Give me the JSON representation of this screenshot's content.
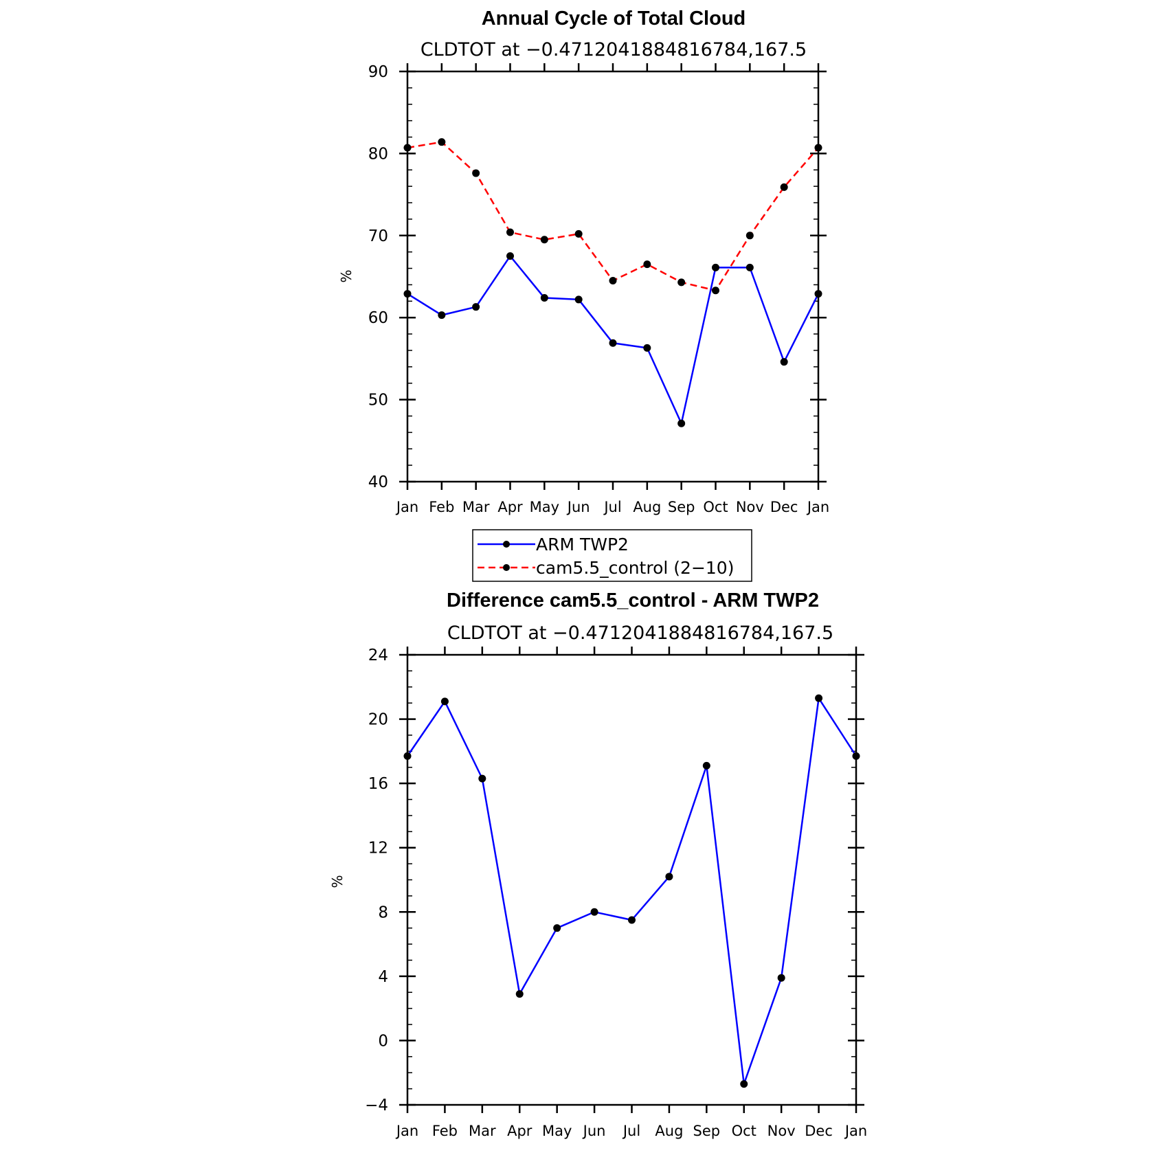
{
  "chart_data": [
    {
      "type": "line",
      "title": "Annual Cycle of Total Cloud",
      "subtitle": "CLDTOT at −0.4712041884816784,167.5",
      "ylabel": "%",
      "xlabel": "",
      "categories": [
        "Jan",
        "Feb",
        "Mar",
        "Apr",
        "May",
        "Jun",
        "Jul",
        "Aug",
        "Sep",
        "Oct",
        "Nov",
        "Dec",
        "Jan"
      ],
      "ylim": [
        40,
        90
      ],
      "yticks": [
        40,
        50,
        60,
        70,
        80,
        90
      ],
      "ytick_labels": [
        "40",
        "50",
        "60",
        "70",
        "80",
        "90"
      ],
      "grid": false,
      "legend_position": "bottom",
      "series": [
        {
          "name": "ARM TWP2",
          "color": "#0000ff",
          "dash": "solid",
          "values": [
            62.9,
            60.3,
            61.3,
            67.5,
            62.4,
            62.2,
            56.9,
            56.3,
            47.1,
            66.1,
            66.1,
            54.6,
            62.9
          ]
        },
        {
          "name": "cam5.5_control (2−10)",
          "color": "#ff0000",
          "dash": "dashed",
          "values": [
            80.7,
            81.4,
            77.6,
            70.4,
            69.5,
            70.2,
            64.5,
            66.5,
            64.3,
            63.3,
            70.0,
            75.9,
            80.7
          ]
        }
      ]
    },
    {
      "type": "line",
      "title": "Difference cam5.5_control - ARM TWP2",
      "subtitle": "CLDTOT at −0.4712041884816784,167.5",
      "ylabel": "%",
      "xlabel": "",
      "categories": [
        "Jan",
        "Feb",
        "Mar",
        "Apr",
        "May",
        "Jun",
        "Jul",
        "Aug",
        "Sep",
        "Oct",
        "Nov",
        "Dec",
        "Jan"
      ],
      "ylim": [
        -4,
        24
      ],
      "yticks": [
        -4,
        0,
        4,
        8,
        12,
        16,
        20,
        24
      ],
      "ytick_labels": [
        "−4",
        "0",
        "4",
        "8",
        "12",
        "16",
        "20",
        "24"
      ],
      "grid": false,
      "series": [
        {
          "color": "#0000ff",
          "dash": "solid",
          "values": [
            17.7,
            21.1,
            16.3,
            2.9,
            7.0,
            8.0,
            7.5,
            10.2,
            17.1,
            -2.7,
            3.9,
            21.3,
            17.7
          ]
        }
      ]
    }
  ]
}
